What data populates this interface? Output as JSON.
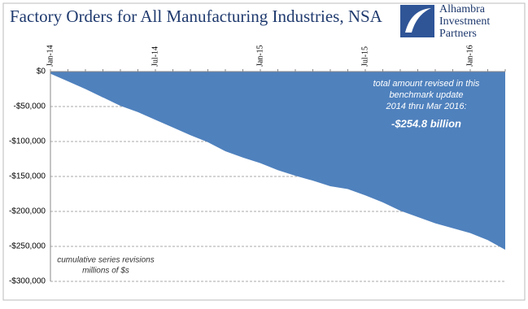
{
  "chart_data": {
    "type": "area",
    "title": "Factory Orders for All Manufacturing Industries, NSA",
    "logo": [
      "Alhambra",
      "Investment",
      "Partners"
    ],
    "categories": [
      "Jan-14",
      null,
      null,
      null,
      null,
      null,
      "Jul-14",
      null,
      null,
      null,
      null,
      null,
      "Jan-15",
      null,
      null,
      null,
      null,
      null,
      "Jul-15",
      null,
      null,
      null,
      null,
      null,
      "Jan-16",
      null,
      null
    ],
    "series": [
      {
        "name": "cumulative series revisions",
        "color": "#4f81bd",
        "values": [
          -3000,
          -14000,
          -25000,
          -37000,
          -49000,
          -58000,
          -69000,
          -80000,
          -91000,
          -101000,
          -114000,
          -123000,
          -131000,
          -141000,
          -149000,
          -156000,
          -164000,
          -168000,
          -177000,
          -187000,
          -199000,
          -208000,
          -217000,
          -224000,
          -231000,
          -241000,
          -254800
        ]
      }
    ],
    "ylim": [
      -300000,
      0
    ],
    "yticks": [
      {
        "value": 0,
        "label": "$0"
      },
      {
        "value": -50000,
        "label": "-$50,000"
      },
      {
        "value": -100000,
        "label": "-$100,000"
      },
      {
        "value": -150000,
        "label": "-$150,000"
      },
      {
        "value": -200000,
        "label": "-$200,000"
      },
      {
        "value": -250000,
        "label": "-$250,000"
      },
      {
        "value": -300000,
        "label": "-$300,000"
      }
    ],
    "grid": true,
    "annotation_total": [
      "total amount revised in this",
      "benchmark update",
      "2014 thru Mar 2016:"
    ],
    "annotation_value": "-$254.8 billion",
    "annotation_units": [
      "cumulative series revisions",
      "millions of $s"
    ]
  }
}
